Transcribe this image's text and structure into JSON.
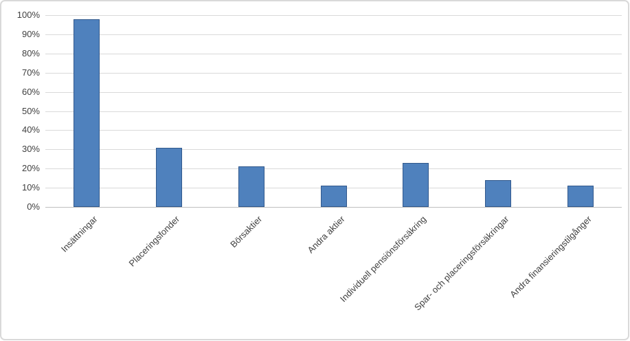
{
  "chart_data": {
    "type": "bar",
    "title": "",
    "xlabel": "",
    "ylabel": "",
    "categories": [
      "Insättningar",
      "Placeringsfonder",
      "Börsaktier",
      "Andra aktier",
      "Individuell pensiönsförsäkring",
      "Spar- och placeringsförsäkringar",
      "Andra finansieringstilgånger"
    ],
    "values": [
      98,
      31,
      21,
      11,
      23,
      14,
      11
    ],
    "unit": "%",
    "ylim": [
      0,
      100
    ],
    "ytick_step": 10,
    "ytick_labels": [
      "0%",
      "10%",
      "20%",
      "30%",
      "40%",
      "50%",
      "60%",
      "70%",
      "80%",
      "90%",
      "100%"
    ],
    "grid": true,
    "legend": false,
    "colors": {
      "bar_fill": "#4F81BD",
      "bar_border": "#31588C",
      "gridline": "#D9D9D9",
      "axis_line": "#BFBFBF",
      "text": "#404040",
      "frame_border": "#D9D9D9",
      "background": "#FFFFFF"
    }
  }
}
